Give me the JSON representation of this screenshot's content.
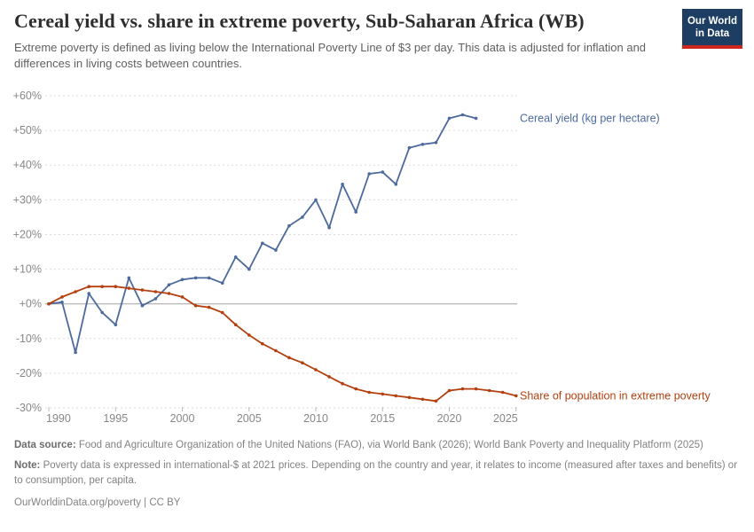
{
  "header": {
    "title": "Cereal yield vs. share in extreme poverty, Sub-Saharan Africa (WB)",
    "subtitle": "Extreme poverty is defined as living below the International Poverty Line of $3 per day. This data is adjusted for inflation and differences in living costs between countries.",
    "logo": {
      "line1": "Our World",
      "line2": "in Data"
    }
  },
  "chart_data": {
    "type": "line",
    "title": "Cereal yield vs. share in extreme poverty, Sub-Saharan Africa (WB)",
    "unit": "%",
    "xlim": [
      1990,
      2026
    ],
    "ylim": [
      -30,
      62
    ],
    "x_ticks": [
      1990,
      1995,
      2000,
      2005,
      2010,
      2015,
      2020,
      2025
    ],
    "y_ticks": [
      60,
      50,
      40,
      30,
      20,
      10,
      0,
      -10,
      -20,
      -30
    ],
    "grid": "horizontal-dashed",
    "zero_line": true,
    "legend_position": "right-end-labels",
    "series": [
      {
        "id": "cereal-yield",
        "name": "Cereal yield (kg per hectare)",
        "color": "#4C6A9C",
        "start_year": 1990,
        "values": [
          0,
          0.5,
          -14,
          3,
          -2.5,
          -6,
          7.5,
          -0.5,
          1.5,
          5.5,
          7,
          7.5,
          7.5,
          6,
          13.5,
          10,
          17.5,
          15.5,
          22.5,
          25,
          30,
          22,
          34.5,
          26.5,
          37.5,
          38,
          34.5,
          45,
          46,
          46.5,
          53.5,
          54.5,
          53.5
        ]
      },
      {
        "id": "extreme-poverty",
        "name": "Share of population in extreme poverty",
        "color": "#B5400F",
        "start_year": 1990,
        "values": [
          0,
          2,
          3.5,
          5,
          5,
          5,
          4.5,
          4,
          3.5,
          3,
          2,
          -0.5,
          -1,
          -2.5,
          -6,
          -9,
          -11.5,
          -13.5,
          -15.5,
          -17,
          -19,
          -21,
          -23,
          -24.5,
          -25.5,
          -26,
          -26.5,
          -27,
          -27.5,
          -28,
          -25,
          -24.5,
          -24.5,
          -25,
          -25.5,
          -26.5
        ]
      }
    ]
  },
  "footer": {
    "datasource_label": "Data source:",
    "datasource_text": " Food and Agriculture Organization of the United Nations (FAO), via World Bank (2026); World Bank Poverty and Inequality Platform (2025)",
    "note_label": "Note:",
    "note_text": " Poverty data is expressed in international-$ at 2021 prices. Depending on the country and year, it relates to income (measured after taxes and benefits) or to consumption, per capita.",
    "license": "OurWorldinData.org/poverty | CC BY"
  },
  "colors": {
    "accent_blue": "#4C6A9C",
    "accent_red": "#B5400F",
    "logo_navy": "#1D3D63",
    "logo_stripe": "#CE261E",
    "grid": "#DCDCDC",
    "zero_line": "#A1A1A1",
    "axis_text": "#878787"
  }
}
